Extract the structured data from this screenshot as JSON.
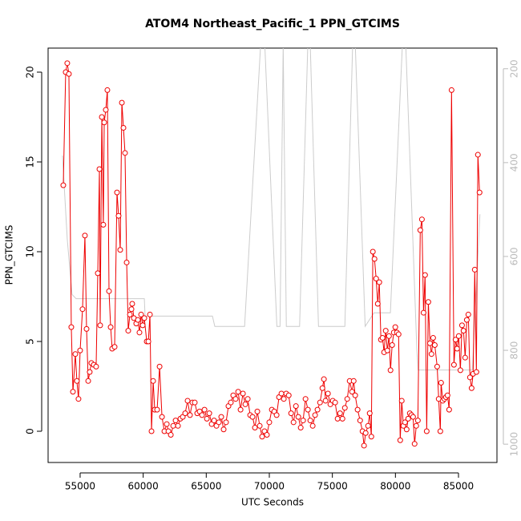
{
  "chart_data": {
    "type": "line",
    "title": "ATOM4 Northeast_Pacific_1 PPN_GTCIMS",
    "x_label": "UTC Seconds",
    "y_label": "PPN_GTCIMS",
    "xlim": [
      52460,
      88050
    ],
    "ylim": [
      -1.74,
      21.34
    ],
    "y2lim": [
      1039,
      156
    ],
    "xticks": [
      55000,
      60000,
      65000,
      70000,
      75000,
      80000,
      85000
    ],
    "yticks": [
      0,
      5,
      10,
      15,
      20
    ],
    "y2ticks": [
      200,
      400,
      600,
      800,
      1000
    ],
    "series": [
      {
        "color": "#cccccc",
        "axis": "y2",
        "markers": false,
        "x": [
          53600,
          53980,
          54360,
          54680,
          60090,
          60150,
          65490,
          65680,
          68040,
          69500,
          70600,
          70850,
          71100,
          71350,
          72400,
          73150,
          73900,
          75990,
          76700,
          77600,
          78300,
          78980,
          79600,
          80700,
          81700,
          81800,
          86100,
          86700
        ],
        "values": [
          385,
          563,
          681,
          690,
          690,
          727,
          727,
          749,
          749,
          60,
          749,
          749,
          150,
          749,
          749,
          60,
          749,
          749,
          60,
          749,
          720,
          720,
          720,
          60,
          800,
          842,
          842,
          510
        ]
      },
      {
        "color": "#ee0000",
        "axis": "y",
        "markers": true,
        "x": [
          53665,
          53855,
          53980,
          54110,
          54300,
          54430,
          54620,
          54745,
          54870,
          55000,
          55190,
          55380,
          55510,
          55640,
          55760,
          55890,
          56080,
          56270,
          56400,
          56530,
          56590,
          56720,
          56840,
          56910,
          57035,
          57160,
          57290,
          57420,
          57540,
          57735,
          57925,
          58050,
          58180,
          58310,
          58435,
          58560,
          58690,
          58815,
          58945,
          59070,
          59130,
          59260,
          59450,
          59580,
          59705,
          59835,
          59960,
          60090,
          60280,
          60410,
          60535,
          60660,
          60790,
          60915,
          61105,
          61300,
          61490,
          61680,
          61870,
          62000,
          62190,
          62380,
          62570,
          62760,
          62950,
          63140,
          63330,
          63520,
          63710,
          63900,
          64090,
          64285,
          64475,
          64665,
          64860,
          65050,
          65240,
          65430,
          65620,
          65810,
          66000,
          66190,
          66380,
          66570,
          66760,
          66950,
          67140,
          67330,
          67530,
          67720,
          67910,
          68100,
          68290,
          68480,
          68670,
          68860,
          69050,
          69240,
          69430,
          69620,
          69810,
          70000,
          70200,
          70390,
          70580,
          70770,
          70960,
          71150,
          71340,
          71540,
          71730,
          71920,
          72110,
          72300,
          72490,
          72680,
          72870,
          73060,
          73250,
          73440,
          73630,
          73820,
          74020,
          74210,
          74330,
          74460,
          74650,
          74840,
          75030,
          75220,
          75415,
          75610,
          75800,
          75990,
          76180,
          76370,
          76560,
          76690,
          76810,
          77000,
          77200,
          77390,
          77510,
          77640,
          77830,
          77960,
          78090,
          78210,
          78340,
          78470,
          78600,
          78720,
          78850,
          78980,
          79100,
          79230,
          79360,
          79490,
          79610,
          79740,
          79870,
          79990,
          80120,
          80250,
          80380,
          80500,
          80630,
          80760,
          80890,
          81010,
          81140,
          81270,
          81400,
          81520,
          81650,
          81780,
          81970,
          82100,
          82230,
          82350,
          82480,
          82610,
          82740,
          82860,
          82990,
          83120,
          83310,
          83430,
          83560,
          83620,
          83750,
          83880,
          84000,
          84130,
          84260,
          84450,
          84640,
          84770,
          84890,
          85020,
          85150,
          85280,
          85400,
          85530,
          85660,
          85780,
          85910,
          86040,
          86160,
          86290,
          86420,
          86540,
          86670
        ],
        "values": [
          13.7,
          20.0,
          20.5,
          19.9,
          5.8,
          2.2,
          4.3,
          2.8,
          1.8,
          4.5,
          6.8,
          10.9,
          5.7,
          2.8,
          3.3,
          3.8,
          3.7,
          3.6,
          8.8,
          14.6,
          5.9,
          17.5,
          11.5,
          17.2,
          17.9,
          19.0,
          7.8,
          5.8,
          4.6,
          4.7,
          13.3,
          12.0,
          10.1,
          18.3,
          16.9,
          15.5,
          9.4,
          5.6,
          6.5,
          6.8,
          7.1,
          6.3,
          6.0,
          6.2,
          5.5,
          6.5,
          5.9,
          6.3,
          5.0,
          5.0,
          6.5,
          0.0,
          2.8,
          1.2,
          1.2,
          3.6,
          0.8,
          0.0,
          0.4,
          0.0,
          -0.2,
          0.3,
          0.6,
          0.3,
          0.7,
          0.8,
          1.0,
          1.7,
          0.9,
          1.6,
          1.6,
          1.0,
          1.1,
          0.9,
          1.2,
          0.7,
          1.0,
          0.4,
          0.6,
          0.3,
          0.5,
          0.8,
          0.1,
          0.5,
          1.4,
          1.6,
          2.0,
          1.8,
          2.2,
          1.2,
          2.1,
          1.5,
          1.8,
          0.9,
          0.8,
          0.2,
          1.1,
          0.3,
          -0.3,
          0.0,
          -0.2,
          0.5,
          1.2,
          1.1,
          0.9,
          1.9,
          2.1,
          1.8,
          2.1,
          2.0,
          1.0,
          0.5,
          1.4,
          0.8,
          0.2,
          0.6,
          1.8,
          1.2,
          0.6,
          0.3,
          0.9,
          1.2,
          1.6,
          2.4,
          2.9,
          1.7,
          2.1,
          1.5,
          1.7,
          1.6,
          0.7,
          1.0,
          0.7,
          1.3,
          1.8,
          2.8,
          2.2,
          2.8,
          2.0,
          1.2,
          0.6,
          0.0,
          -0.8,
          -0.1,
          0.3,
          1.0,
          -0.3,
          10.0,
          9.6,
          8.5,
          7.1,
          8.3,
          5.1,
          5.2,
          4.4,
          5.6,
          4.5,
          5.3,
          3.4,
          4.8,
          5.5,
          5.8,
          5.5,
          5.4,
          -0.5,
          1.7,
          0.3,
          0.5,
          0.1,
          0.7,
          1.0,
          0.9,
          0.8,
          -0.7,
          0.3,
          0.6,
          11.2,
          11.8,
          6.6,
          8.7,
          0.0,
          7.2,
          4.9,
          4.3,
          5.2,
          4.8,
          3.6,
          1.8,
          0.0,
          2.7,
          1.7,
          1.8,
          1.9,
          2.0,
          1.2,
          19.0,
          3.7,
          5.1,
          4.6,
          5.3,
          3.4,
          5.9,
          5.6,
          4.1,
          6.2,
          6.5,
          3.0,
          2.4,
          3.2,
          9.0,
          3.3,
          15.4,
          13.3
        ]
      }
    ]
  }
}
